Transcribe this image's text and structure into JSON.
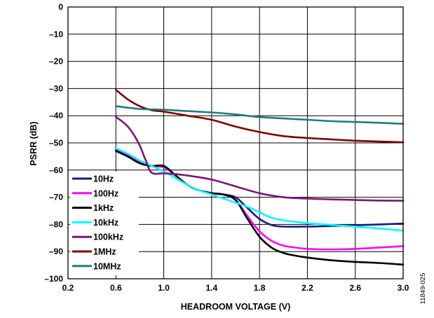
{
  "chart_data": {
    "type": "line",
    "title": "",
    "xlabel": "HEADROOM VOLTAGE (V)",
    "ylabel": "PSRR (dB)",
    "xlim": [
      0.2,
      3.0
    ],
    "ylim": [
      -100,
      0
    ],
    "xticks": [
      "0.2",
      "0.6",
      "1.0",
      "1.4",
      "1.8",
      "2.2",
      "2.6",
      "3.0"
    ],
    "yticks": [
      "0",
      "–10",
      "–20",
      "–30",
      "–40",
      "–50",
      "–60",
      "–70",
      "–80",
      "–90",
      "–100"
    ],
    "grid": true,
    "legend_position": "bottom-left",
    "figure_id": "11849-025",
    "series": [
      {
        "name": "10Hz",
        "color": "#1a1a7e",
        "x": [
          0.6,
          0.7,
          0.8,
          0.9,
          1.0,
          1.1,
          1.2,
          1.3,
          1.4,
          1.5,
          1.6,
          1.7,
          1.8,
          1.9,
          2.0,
          2.2,
          2.4,
          2.6,
          2.8,
          3.0
        ],
        "y": [
          -52.5,
          -55,
          -57.5,
          -58.5,
          -58.5,
          -62,
          -65.5,
          -67.5,
          -68.5,
          -69,
          -70,
          -74,
          -78,
          -80.2,
          -80.8,
          -80.8,
          -80.6,
          -80.3,
          -80,
          -79.7
        ]
      },
      {
        "name": "100Hz",
        "color": "#ff00ff",
        "x": [
          0.6,
          0.7,
          0.8,
          0.9,
          1.0,
          1.1,
          1.2,
          1.3,
          1.4,
          1.5,
          1.6,
          1.7,
          1.8,
          1.9,
          2.0,
          2.1,
          2.2,
          2.4,
          2.6,
          2.8,
          3.0
        ],
        "y": [
          -52,
          -54.5,
          -57,
          -58.5,
          -59,
          -62,
          -65.5,
          -67.5,
          -68.5,
          -69,
          -71,
          -77,
          -82.5,
          -86,
          -87.8,
          -88.5,
          -89,
          -89.2,
          -89,
          -88.5,
          -88
        ]
      },
      {
        "name": "1kHz",
        "color": "#000000",
        "x": [
          0.6,
          0.7,
          0.8,
          0.9,
          1.0,
          1.1,
          1.2,
          1.3,
          1.4,
          1.5,
          1.6,
          1.7,
          1.8,
          1.9,
          2.0,
          2.1,
          2.2,
          2.4,
          2.6,
          2.8,
          3.0
        ],
        "y": [
          -53,
          -55,
          -57.5,
          -58.5,
          -58.5,
          -62,
          -65.5,
          -67.5,
          -68.5,
          -69,
          -71,
          -78,
          -84.5,
          -88.5,
          -90.5,
          -91.5,
          -92.2,
          -93.2,
          -93.8,
          -94.2,
          -94.8
        ]
      },
      {
        "name": "10kHz",
        "color": "#00ffff",
        "x": [
          0.6,
          0.7,
          0.8,
          0.9,
          1.0,
          1.1,
          1.2,
          1.3,
          1.4,
          1.5,
          1.6,
          1.7,
          1.8,
          1.9,
          2.0,
          2.2,
          2.4,
          2.6,
          2.8,
          3.0
        ],
        "y": [
          -52,
          -54,
          -56.5,
          -58.5,
          -60.5,
          -63,
          -65.5,
          -67.5,
          -69,
          -70.5,
          -72,
          -73.5,
          -75.5,
          -77.5,
          -78.5,
          -79.5,
          -80.2,
          -80.8,
          -81.5,
          -82.3
        ]
      },
      {
        "name": "100kHz",
        "color": "#7a147a",
        "x": [
          0.6,
          0.65,
          0.7,
          0.75,
          0.8,
          0.85,
          0.9,
          1.0,
          1.1,
          1.2,
          1.4,
          1.6,
          1.8,
          2.0,
          2.2,
          2.4,
          2.6,
          2.8,
          3.0
        ],
        "y": [
          -40.5,
          -42,
          -44,
          -47,
          -51,
          -56.5,
          -61,
          -61.2,
          -61.5,
          -62,
          -63.5,
          -66,
          -68.5,
          -70,
          -70.5,
          -70.8,
          -71,
          -71.2,
          -71.3
        ]
      },
      {
        "name": "1MHz",
        "color": "#800000",
        "x": [
          0.6,
          0.7,
          0.8,
          0.9,
          1.0,
          1.2,
          1.4,
          1.6,
          1.8,
          2.0,
          2.2,
          2.4,
          2.6,
          2.8,
          3.0
        ],
        "y": [
          -30.5,
          -34,
          -36.5,
          -38,
          -38.5,
          -40,
          -41.5,
          -44,
          -46,
          -47.5,
          -48.2,
          -48.7,
          -49.2,
          -49.5,
          -49.8
        ]
      },
      {
        "name": "10MHz",
        "color": "#1a7f7f",
        "x": [
          0.6,
          0.8,
          1.0,
          1.2,
          1.4,
          1.6,
          1.8,
          2.0,
          2.2,
          2.4,
          2.6,
          2.8,
          3.0
        ],
        "y": [
          -36.5,
          -37.5,
          -37.8,
          -38.3,
          -38.8,
          -39.5,
          -40.5,
          -41,
          -41.5,
          -42,
          -42.3,
          -42.6,
          -43
        ]
      }
    ]
  }
}
